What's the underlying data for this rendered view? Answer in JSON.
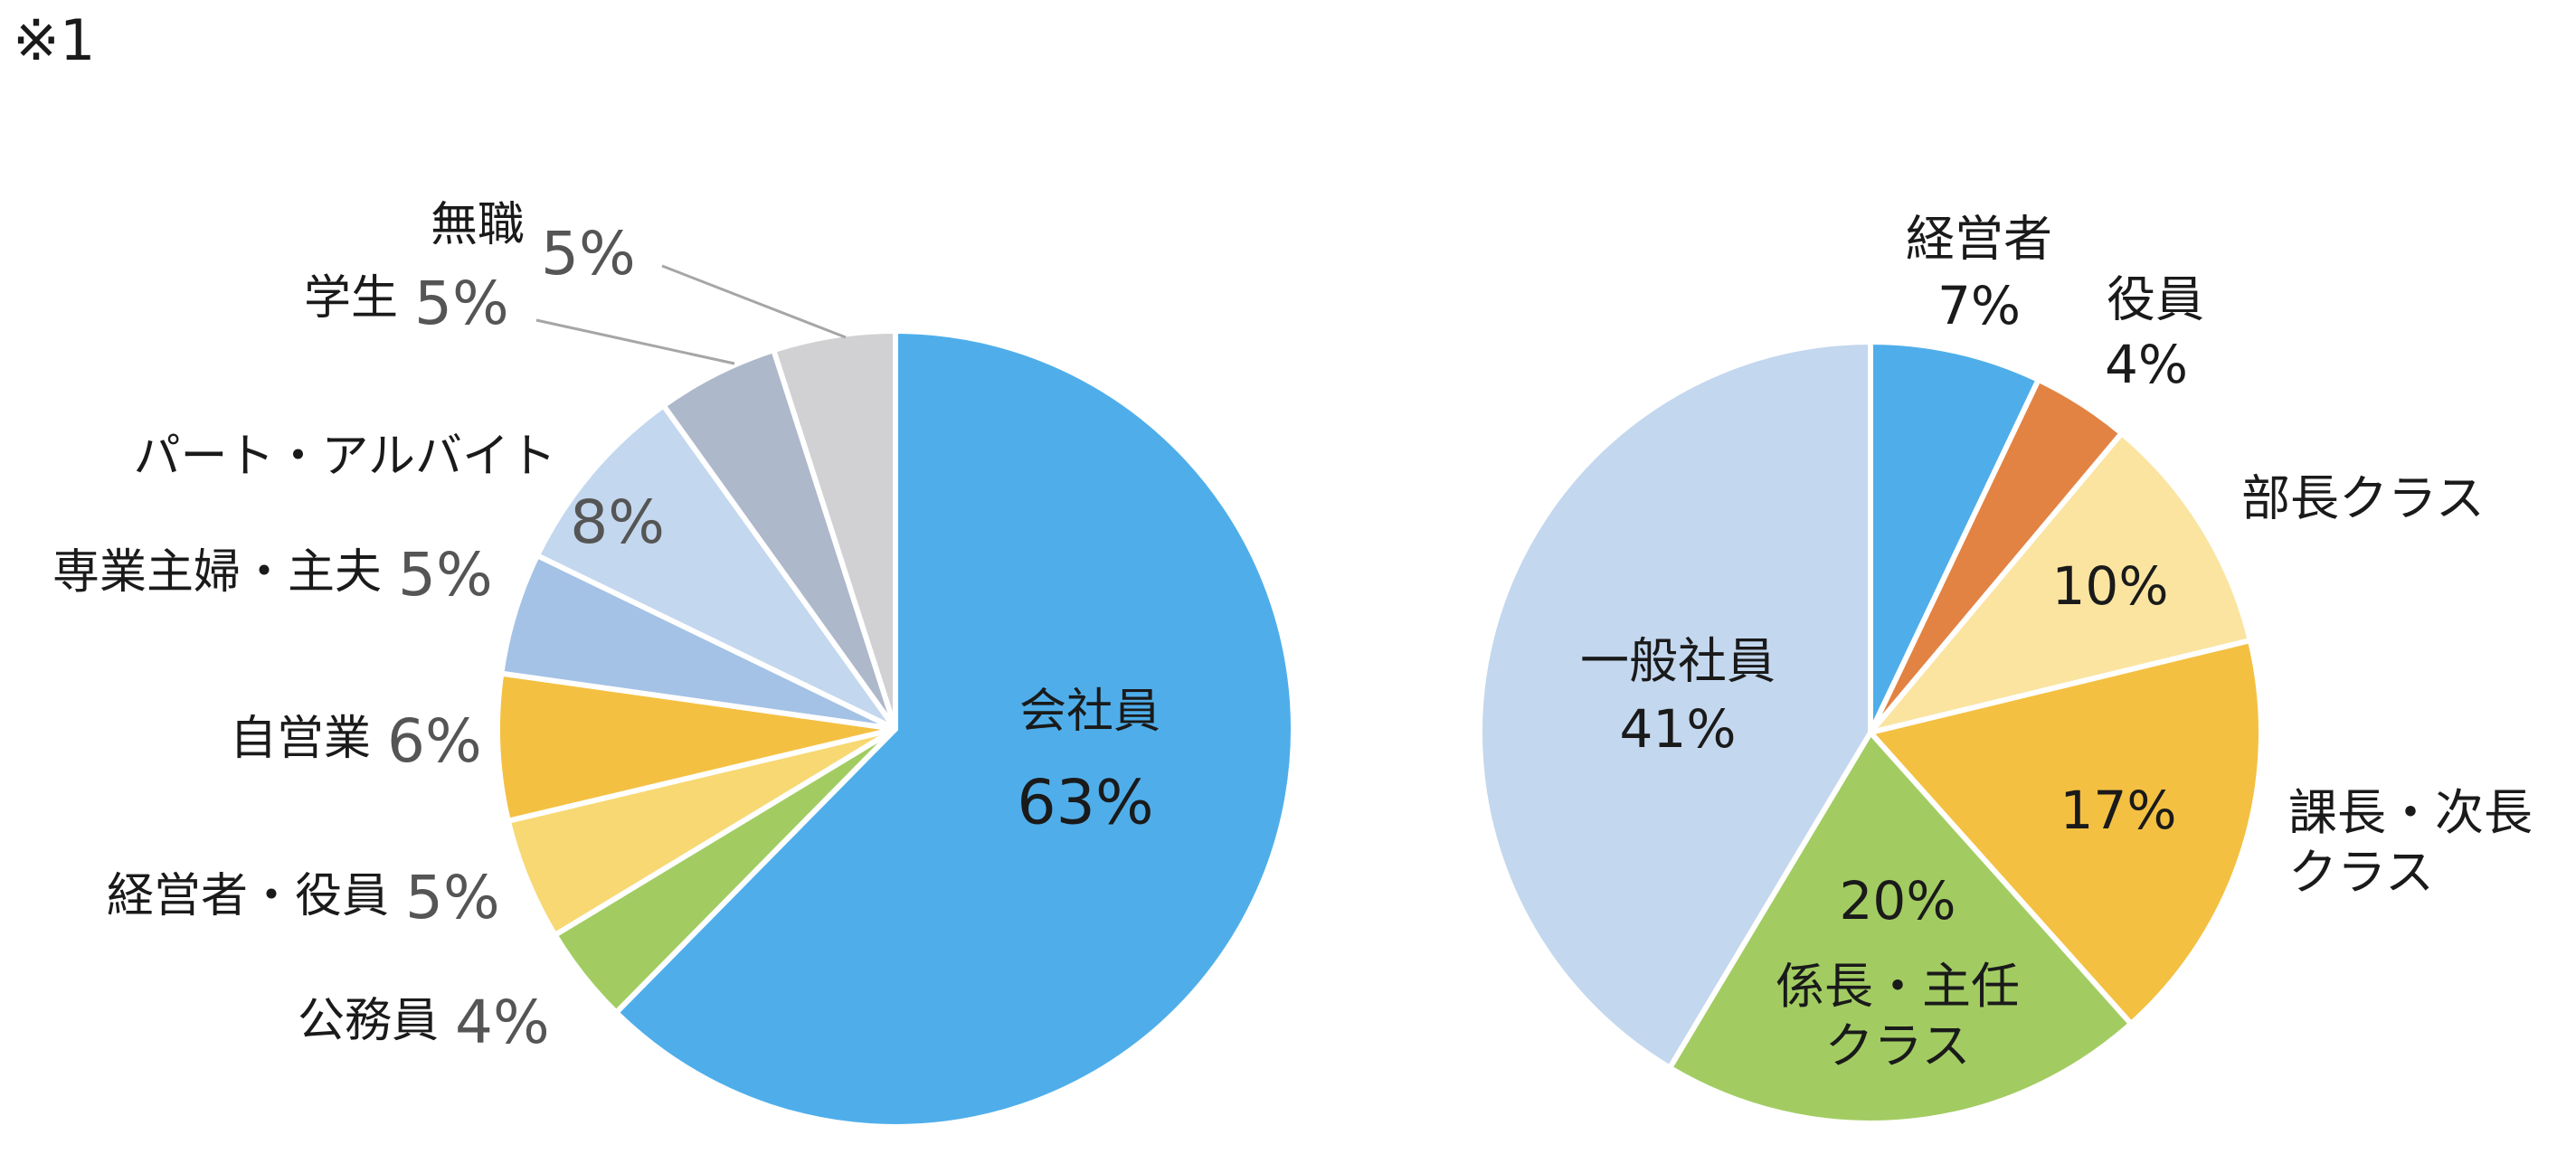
{
  "note": "※1",
  "chart_data": [
    {
      "type": "pie",
      "slices": [
        {
          "label": "会社員",
          "value": 63,
          "value_label": "63%",
          "color": "#4FAEEA"
        },
        {
          "label": "公務員",
          "value": 4,
          "value_label": "4%",
          "color": "#A2CC62"
        },
        {
          "label": "経営者・役員",
          "value": 5,
          "value_label": "5%",
          "color": "#F7D873"
        },
        {
          "label": "自営業",
          "value": 6,
          "value_label": "6%",
          "color": "#F4C042"
        },
        {
          "label": "専業主婦・主夫",
          "value": 5,
          "value_label": "5%",
          "color": "#A4C2E5"
        },
        {
          "label": "パート・アルバイト",
          "value": 8,
          "value_label": "8%",
          "color": "#C3D7EE"
        },
        {
          "label": "学生",
          "value": 5,
          "value_label": "5%",
          "color": "#ADB8CA"
        },
        {
          "label": "無職",
          "value": 5,
          "value_label": "5%",
          "color": "#D1D0D2"
        }
      ]
    },
    {
      "type": "pie",
      "slices": [
        {
          "label": "経営者",
          "value": 7,
          "value_label": "7%",
          "color": "#4FAEEA"
        },
        {
          "label": "役員",
          "value": 4,
          "value_label": "4%",
          "color": "#E28343"
        },
        {
          "label": "部長クラス",
          "value": 10,
          "value_label": "10%",
          "color": "#FAE4A0"
        },
        {
          "label": "課長・次長\nクラス",
          "value": 17,
          "value_label": "17%",
          "color": "#F4C042"
        },
        {
          "label": "係長・主任\nクラス",
          "value": 20,
          "value_label": "20%",
          "color": "#A2CC62"
        },
        {
          "label": "一般社員",
          "value": 41,
          "value_label": "41%",
          "color": "#C3D7EE"
        }
      ]
    }
  ]
}
